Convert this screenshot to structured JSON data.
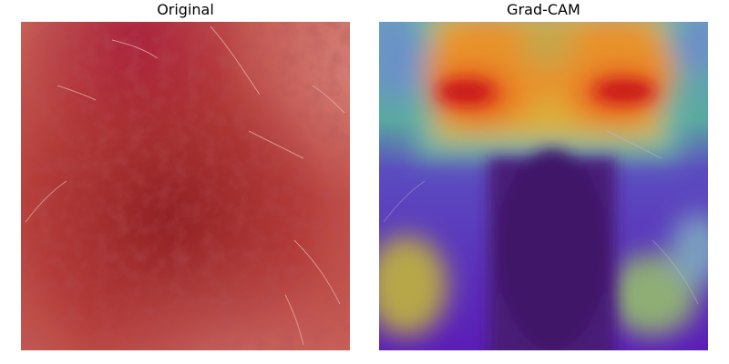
{
  "panels": {
    "original": {
      "title": "Original"
    },
    "gradcam": {
      "title": "Grad-CAM"
    }
  },
  "colors": {
    "skin_base": "#c0504a",
    "lesion_dark": "#8e1c22",
    "heat_red": "#d7201c",
    "heat_orange": "#e89a2c",
    "heat_yellow": "#d9b13a",
    "heat_teal": "#4fb0a4",
    "heat_blue": "#5f86c8",
    "heat_indigo": "#5b1db7",
    "heat_darkpurple": "#4a1a78"
  }
}
